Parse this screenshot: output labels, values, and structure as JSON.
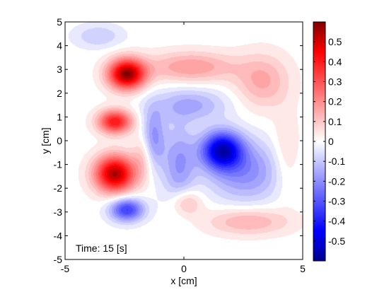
{
  "chart_data": {
    "type": "heatmap",
    "title": "",
    "xlabel": "x [cm]",
    "ylabel": "y [cm]",
    "xlim": [
      -5,
      5
    ],
    "ylim": [
      -5,
      5
    ],
    "x_ticks": [
      -5,
      0,
      5
    ],
    "x_tick_labels": [
      "-5",
      "0",
      "5"
    ],
    "y_ticks": [
      -5,
      -4,
      -3,
      -2,
      -1,
      0,
      1,
      2,
      3,
      4,
      5
    ],
    "y_tick_labels": [
      "-5",
      "-4",
      "-3",
      "-2",
      "-1",
      "0",
      "1",
      "2",
      "3",
      "4",
      "5"
    ],
    "annotation": "Time: 15 [s]",
    "grid": false,
    "colorbar": {
      "clim": [
        -0.6,
        0.6
      ],
      "ticks": [
        -0.5,
        -0.4,
        -0.3,
        -0.2,
        -0.1,
        0,
        0.1,
        0.2,
        0.3,
        0.4,
        0.5
      ],
      "tick_labels": [
        "-0.5",
        "-0.4",
        "-0.3",
        "-0.2",
        "-0.1",
        "0",
        "0.1",
        "0.2",
        "0.3",
        "0.4",
        "0.5"
      ],
      "colors": {
        "min": "#00008f",
        "mid": "#ffffff",
        "max": "#800000",
        "red": "#ff0000",
        "blue": "#0000ff"
      }
    },
    "features": [
      {
        "x": -2.4,
        "y": 2.8,
        "value": 0.58,
        "sx": 0.55,
        "sy": 0.45
      },
      {
        "x": -2.9,
        "y": 0.8,
        "value": 0.42,
        "sx": 0.5,
        "sy": 0.35
      },
      {
        "x": -2.9,
        "y": -1.4,
        "value": 0.55,
        "sx": 0.6,
        "sy": 0.55
      },
      {
        "x": -2.4,
        "y": -2.9,
        "value": -0.35,
        "sx": 0.5,
        "sy": 0.35
      },
      {
        "x": 1.6,
        "y": -0.4,
        "value": -0.5,
        "sx": 0.6,
        "sy": 0.55
      },
      {
        "x": 2.6,
        "y": -1.3,
        "value": -0.2,
        "sx": 1.1,
        "sy": 0.9
      },
      {
        "x": 0.3,
        "y": 1.5,
        "value": -0.15,
        "sx": 1.1,
        "sy": 0.5
      },
      {
        "x": -0.2,
        "y": -1.0,
        "value": -0.18,
        "sx": 0.5,
        "sy": 1.2
      },
      {
        "x": -1.3,
        "y": 0.1,
        "value": -0.2,
        "sx": 0.35,
        "sy": 0.9
      },
      {
        "x": 0.3,
        "y": 3.1,
        "value": 0.18,
        "sx": 1.3,
        "sy": 0.45
      },
      {
        "x": 3.3,
        "y": 2.5,
        "value": 0.15,
        "sx": 0.8,
        "sy": 0.8
      },
      {
        "x": 2.7,
        "y": -3.4,
        "value": 0.15,
        "sx": 1.2,
        "sy": 0.4
      },
      {
        "x": 0.1,
        "y": -2.6,
        "value": 0.15,
        "sx": 0.45,
        "sy": 0.4
      },
      {
        "x": -3.6,
        "y": 4.4,
        "value": -0.1,
        "sx": 0.7,
        "sy": 0.35
      },
      {
        "x": -1.7,
        "y": -0.6,
        "value": 0.12,
        "sx": 0.3,
        "sy": 0.7
      },
      {
        "x": 4.3,
        "y": -0.6,
        "value": 0.08,
        "sx": 0.4,
        "sy": 1.2
      }
    ]
  }
}
